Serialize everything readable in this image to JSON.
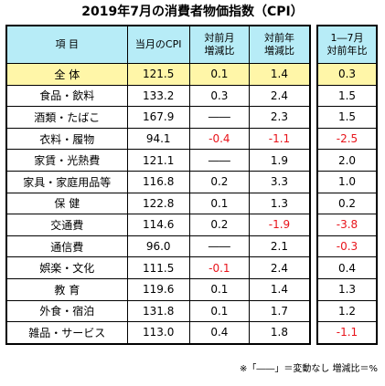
{
  "title": "2019年7月の消費者物価指数（CPI）",
  "headers": {
    "item": "項 目",
    "cpi": "当月のCPI",
    "mom": [
      "対前月",
      "増減比"
    ],
    "yoy": [
      "対前年",
      "増減比"
    ],
    "ytd": [
      "1―7月",
      "対前年比"
    ]
  },
  "rows": [
    {
      "item": "全 体",
      "cpi": "121.5",
      "mom": "0.1",
      "yoy": "1.4",
      "ytd": "0.3"
    },
    {
      "item": "食品・飲料",
      "cpi": "133.2",
      "mom": "0.3",
      "yoy": "2.4",
      "ytd": "1.5"
    },
    {
      "item": "酒類・たばこ",
      "cpi": "167.9",
      "mom": "――",
      "yoy": "2.3",
      "ytd": "1.5"
    },
    {
      "item": "衣料・履物",
      "cpi": "94.1",
      "mom": "-0.4",
      "yoy": "-1.1",
      "ytd": "-2.5"
    },
    {
      "item": "家賃・光熱費",
      "cpi": "121.1",
      "mom": "――",
      "yoy": "1.9",
      "ytd": "2.0"
    },
    {
      "item": "家具・家庭用品等",
      "cpi": "116.8",
      "mom": "0.2",
      "yoy": "3.3",
      "ytd": "1.0"
    },
    {
      "item": "保 健",
      "cpi": "122.8",
      "mom": "0.1",
      "yoy": "1.3",
      "ytd": "0.2"
    },
    {
      "item": "交通費",
      "cpi": "114.6",
      "mom": "0.2",
      "yoy": "-1.9",
      "ytd": "-3.8"
    },
    {
      "item": "通信費",
      "cpi": "96.0",
      "mom": "――",
      "yoy": "2.1",
      "ytd": "-0.3"
    },
    {
      "item": "娯楽・文化",
      "cpi": "111.5",
      "mom": "-0.1",
      "yoy": "2.4",
      "ytd": "0.4"
    },
    {
      "item": "教 育",
      "cpi": "119.6",
      "mom": "0.1",
      "yoy": "1.4",
      "ytd": "1.3"
    },
    {
      "item": "外食・宿泊",
      "cpi": "131.8",
      "mom": "0.1",
      "yoy": "1.7",
      "ytd": "1.2"
    },
    {
      "item": "雑品・サービス",
      "cpi": "113.0",
      "mom": "0.4",
      "yoy": "1.8",
      "ytd": "-1.1"
    }
  ],
  "note": "※「――」＝変動なし 増減比＝%",
  "colors": {
    "header_bg": "#b7ecf7",
    "highlight_bg": "#fff6a8",
    "negative": "#e8141b"
  }
}
